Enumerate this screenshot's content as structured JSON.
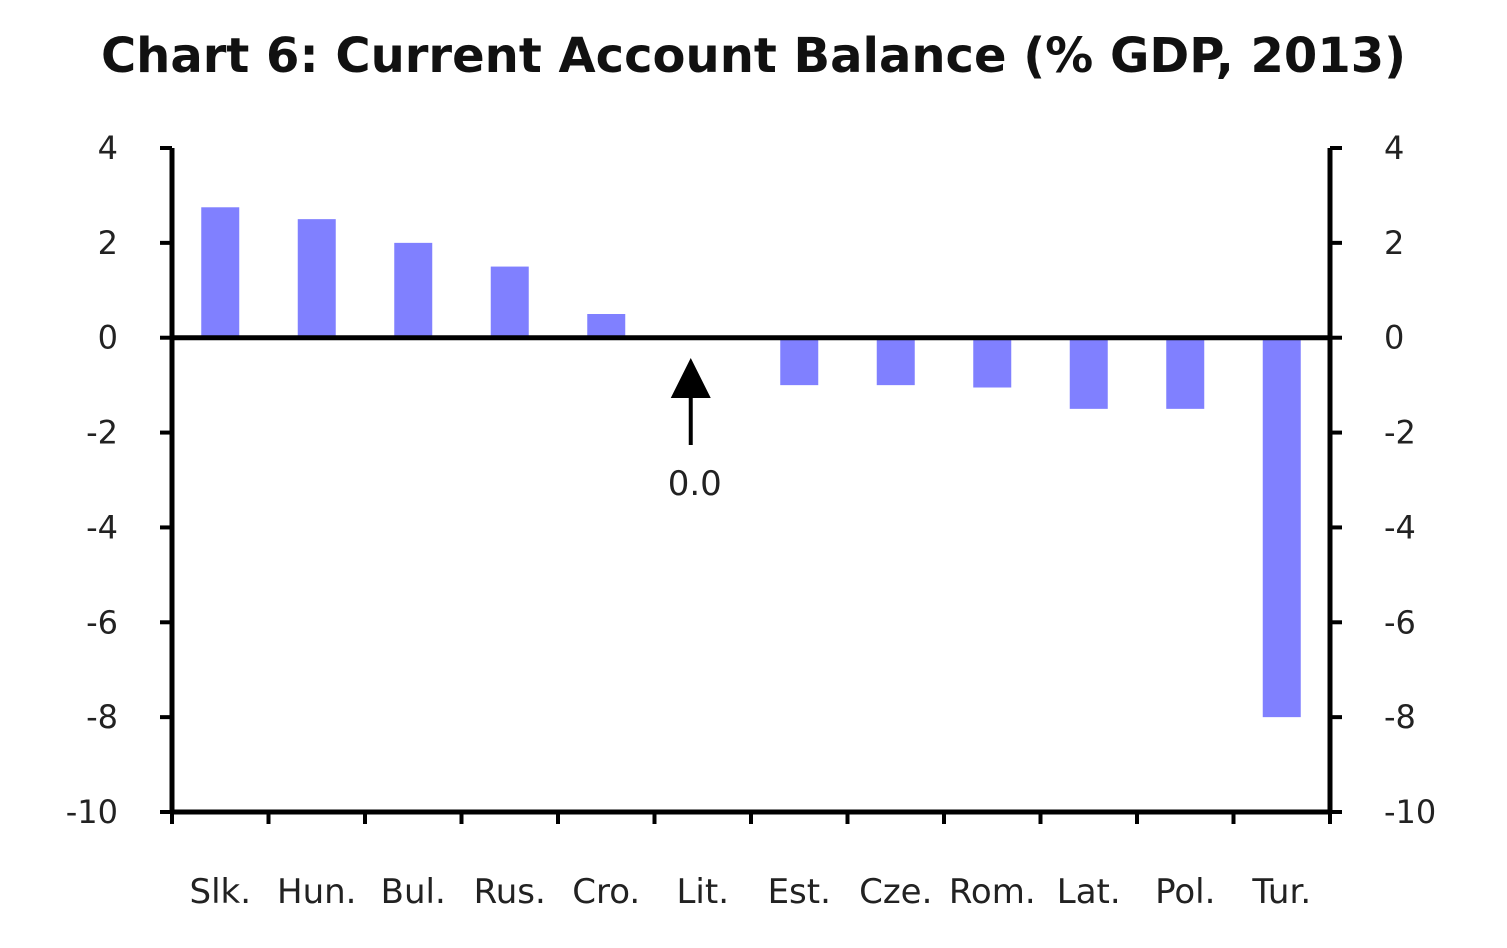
{
  "chart_data": {
    "type": "bar",
    "title": "Chart 6: Current Account Balance (% GDP, 2013)",
    "categories": [
      "Slk.",
      "Hun.",
      "Bul.",
      "Rus.",
      "Cro.",
      "Lit.",
      "Est.",
      "Cze.",
      "Rom.",
      "Lat.",
      "Pol.",
      "Tur."
    ],
    "values": [
      2.75,
      2.5,
      2.0,
      1.5,
      0.5,
      0.0,
      -1.0,
      -1.0,
      -1.05,
      -1.5,
      -1.5,
      -8.0
    ],
    "ylim": [
      -10,
      4
    ],
    "yticks": [
      "4",
      "2",
      "0",
      "-2",
      "-4",
      "-6",
      "-8",
      "-10"
    ],
    "ytick_values": [
      4,
      2,
      0,
      -2,
      -4,
      -6,
      -8,
      -10
    ],
    "y_axis_both_sides": true,
    "grid": false,
    "bar_color": "#8080ff",
    "annotation": {
      "text": "0.0",
      "category": "Lit.",
      "value": 0.0
    }
  }
}
